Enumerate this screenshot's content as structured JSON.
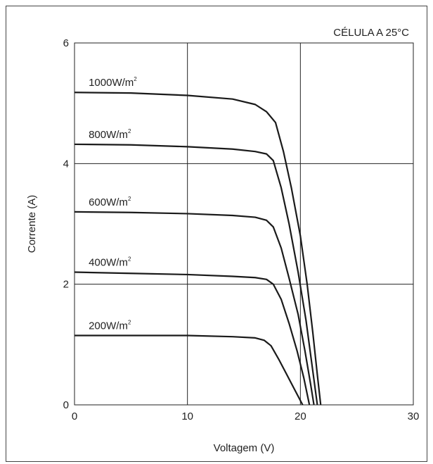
{
  "chart_data": {
    "type": "line",
    "annotation": "CÉLULA A 25°C",
    "xlabel": "Voltagem (V)",
    "ylabel": "Corrente (A)",
    "xlim": [
      0,
      30
    ],
    "ylim": [
      0,
      6
    ],
    "xticks": [
      "0",
      "10",
      "20",
      "30"
    ],
    "yticks": [
      "0",
      "2",
      "4",
      "6"
    ],
    "grid": true,
    "series": [
      {
        "name": "1000W/m",
        "sup": "2",
        "points": [
          [
            0,
            5.18
          ],
          [
            5,
            5.17
          ],
          [
            10,
            5.13
          ],
          [
            14,
            5.07
          ],
          [
            16,
            4.98
          ],
          [
            17,
            4.86
          ],
          [
            17.8,
            4.68
          ],
          [
            18.5,
            4.2
          ],
          [
            19.2,
            3.6
          ],
          [
            20,
            2.8
          ],
          [
            20.6,
            2.0
          ],
          [
            21.1,
            1.2
          ],
          [
            21.5,
            0.5
          ],
          [
            21.8,
            0
          ]
        ]
      },
      {
        "name": "800W/m",
        "sup": "2",
        "points": [
          [
            0,
            4.32
          ],
          [
            5,
            4.31
          ],
          [
            10,
            4.28
          ],
          [
            14,
            4.24
          ],
          [
            16,
            4.2
          ],
          [
            17,
            4.16
          ],
          [
            17.6,
            4.05
          ],
          [
            18.3,
            3.6
          ],
          [
            19,
            3.0
          ],
          [
            19.8,
            2.2
          ],
          [
            20.5,
            1.4
          ],
          [
            21,
            0.7
          ],
          [
            21.5,
            0
          ]
        ]
      },
      {
        "name": "600W/m",
        "sup": "2",
        "points": [
          [
            0,
            3.2
          ],
          [
            5,
            3.19
          ],
          [
            10,
            3.17
          ],
          [
            14,
            3.14
          ],
          [
            16,
            3.11
          ],
          [
            17,
            3.06
          ],
          [
            17.6,
            2.95
          ],
          [
            18.3,
            2.6
          ],
          [
            19,
            2.1
          ],
          [
            19.8,
            1.5
          ],
          [
            20.4,
            0.9
          ],
          [
            20.9,
            0.35
          ],
          [
            21.2,
            0
          ]
        ]
      },
      {
        "name": "400W/m",
        "sup": "2",
        "points": [
          [
            0,
            2.2
          ],
          [
            5,
            2.18
          ],
          [
            10,
            2.16
          ],
          [
            14,
            2.13
          ],
          [
            16,
            2.11
          ],
          [
            17,
            2.08
          ],
          [
            17.6,
            2.0
          ],
          [
            18.3,
            1.75
          ],
          [
            19,
            1.35
          ],
          [
            19.7,
            0.9
          ],
          [
            20.3,
            0.45
          ],
          [
            20.8,
            0
          ]
        ]
      },
      {
        "name": "200W/m",
        "sup": "2",
        "points": [
          [
            0,
            1.15
          ],
          [
            5,
            1.15
          ],
          [
            10,
            1.15
          ],
          [
            14,
            1.13
          ],
          [
            16,
            1.11
          ],
          [
            16.8,
            1.07
          ],
          [
            17.4,
            0.98
          ],
          [
            18.1,
            0.75
          ],
          [
            18.8,
            0.5
          ],
          [
            19.5,
            0.25
          ],
          [
            20.2,
            0
          ]
        ]
      }
    ]
  },
  "colors": {
    "curve": "#1a1a1a",
    "grid": "#222222",
    "text": "#222222"
  }
}
